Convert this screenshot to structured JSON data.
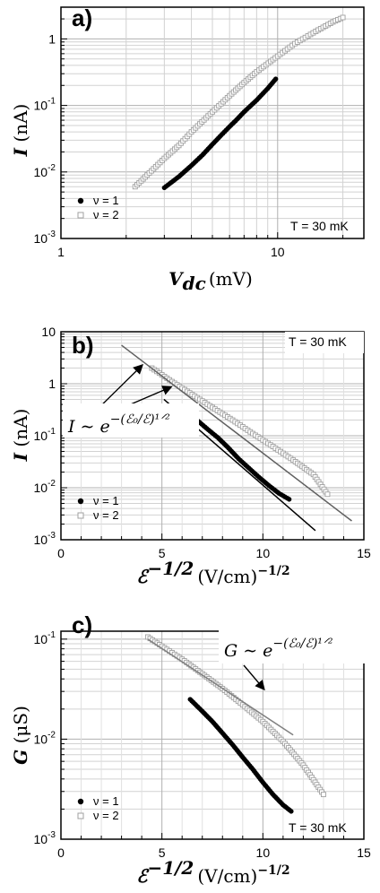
{
  "chart_data": [
    {
      "type": "scatter",
      "panel": "a)",
      "xlabel": "V_dc (mV)",
      "xlabel_var": "V",
      "xlabel_sub": "dc",
      "xlabel_unit": "(mV)",
      "ylabel": "I (nA)",
      "ylabel_var": "I",
      "ylabel_unit": "(nA)",
      "xscale": "log",
      "yscale": "log",
      "xlim": [
        1,
        25
      ],
      "ylim": [
        0.001,
        3
      ],
      "xticks": [
        "1",
        "10"
      ],
      "yticks": [
        "10-3",
        "10-2",
        "10-1",
        "1"
      ],
      "grid": true,
      "legend": "bottom-left",
      "temperature": "T = 30 mK",
      "series": [
        {
          "name": "ν = 1",
          "marker": "filled-circle",
          "color": "#000000",
          "x": [
            3.0,
            3.5,
            4.0,
            4.5,
            5.0,
            5.5,
            6.0,
            6.5,
            7.0,
            8.0,
            9.0,
            9.8
          ],
          "y": [
            0.0058,
            0.0085,
            0.0125,
            0.018,
            0.026,
            0.036,
            0.048,
            0.062,
            0.08,
            0.12,
            0.18,
            0.25
          ]
        },
        {
          "name": "ν = 2",
          "marker": "open-square",
          "color": "#a0a0a0",
          "x": [
            2.2,
            2.5,
            3.0,
            3.5,
            4.0,
            5.0,
            6.0,
            7.0,
            8.0,
            10.0,
            12.0,
            15.0,
            18.0,
            20.0
          ],
          "y": [
            0.006,
            0.009,
            0.016,
            0.025,
            0.04,
            0.08,
            0.14,
            0.22,
            0.32,
            0.55,
            0.85,
            1.3,
            1.8,
            2.1
          ]
        }
      ]
    },
    {
      "type": "scatter",
      "panel": "b)",
      "xlabel": "ℰ^(-1/2) (V/cm)^(-1/2)",
      "xlabel_var": "ℰ",
      "xlabel_exp": "−1/2",
      "xlabel_unit": "(V/cm)",
      "xlabel_unit_exp": "−1/2",
      "ylabel": "I (nA)",
      "ylabel_var": "I",
      "ylabel_unit": "(nA)",
      "xscale": "linear",
      "yscale": "log",
      "xlim": [
        0,
        15
      ],
      "ylim": [
        0.001,
        10
      ],
      "xticks": [
        "0",
        "5",
        "10",
        "15"
      ],
      "yticks": [
        "10-3",
        "10-2",
        "10-1",
        "1",
        "10"
      ],
      "grid": true,
      "legend": "bottom-left",
      "temperature": "T = 30 mK",
      "annotation": "I ~ e^-(ℰ0/ℰ)^1/2",
      "annotation_lhs": "I",
      "annotation_sim": "∼",
      "annotation_base": "e",
      "annotation_exp": "−(ℰ₀/ℰ)¹ᐟ²",
      "series": [
        {
          "name": "ν = 1",
          "marker": "filled-circle",
          "color": "#000000",
          "x": [
            6.3,
            6.8,
            7.3,
            7.8,
            8.3,
            8.8,
            9.3,
            9.8,
            10.3,
            10.8,
            11.3
          ],
          "y": [
            0.26,
            0.19,
            0.13,
            0.09,
            0.058,
            0.036,
            0.024,
            0.016,
            0.011,
            0.0078,
            0.006
          ]
        },
        {
          "name": "ν = 2",
          "marker": "open-square",
          "color": "#a0a0a0",
          "x": [
            4.5,
            5.5,
            6.5,
            7.5,
            8.5,
            9.5,
            10.5,
            11.5,
            12.5,
            13.2
          ],
          "y": [
            2.0,
            1.1,
            0.62,
            0.35,
            0.2,
            0.11,
            0.062,
            0.034,
            0.018,
            0.0075
          ]
        },
        {
          "name": "",
          "marker": "line",
          "color": "#000000",
          "x": [
            5.1,
            12.6
          ],
          "y": [
            0.5,
            0.0015
          ]
        },
        {
          "name": "",
          "marker": "line",
          "color": "#606060",
          "x": [
            3.0,
            14.4
          ],
          "y": [
            5.5,
            0.0023
          ]
        }
      ]
    },
    {
      "type": "scatter",
      "panel": "c)",
      "xlabel": "ℰ^(-1/2) (V/cm)^(-1/2)",
      "xlabel_var": "ℰ",
      "xlabel_exp": "−1/2",
      "xlabel_unit": "(V/cm)",
      "xlabel_unit_exp": "−1/2",
      "ylabel": "G (μS)",
      "ylabel_var": "G",
      "ylabel_unit": "(μS)",
      "xscale": "linear",
      "yscale": "log",
      "xlim": [
        0,
        15
      ],
      "ylim": [
        0.001,
        0.12
      ],
      "xticks": [
        "0",
        "5",
        "10",
        "15"
      ],
      "yticks": [
        "10-3",
        "10-2",
        "10-1"
      ],
      "grid": true,
      "legend": "bottom-left",
      "temperature": "T = 30 mK",
      "annotation": "G ~ e^-(ℰ0/ℰ)^1/2",
      "annotation_lhs": "G",
      "annotation_sim": "∼",
      "annotation_base": "e",
      "annotation_exp": "−(ℰ₀/ℰ)¹ᐟ²",
      "series": [
        {
          "name": "ν = 1",
          "marker": "filled-circle",
          "color": "#000000",
          "x": [
            6.4,
            7.0,
            7.5,
            8.0,
            8.5,
            9.0,
            9.5,
            10.0,
            10.5,
            11.0,
            11.4
          ],
          "y": [
            0.025,
            0.019,
            0.015,
            0.0115,
            0.0088,
            0.0066,
            0.005,
            0.0037,
            0.0028,
            0.0022,
            0.0019
          ]
        },
        {
          "name": "ν = 2",
          "marker": "open-square",
          "color": "#a0a0a0",
          "x": [
            4.3,
            5.0,
            6.0,
            7.0,
            8.0,
            9.0,
            10.0,
            11.0,
            12.0,
            13.0
          ],
          "y": [
            0.105,
            0.085,
            0.063,
            0.045,
            0.032,
            0.022,
            0.015,
            0.0095,
            0.0055,
            0.0028
          ]
        },
        {
          "name": "",
          "marker": "line",
          "color": "#808080",
          "x": [
            4.3,
            11.5
          ],
          "y": [
            0.1,
            0.011
          ]
        }
      ]
    }
  ]
}
